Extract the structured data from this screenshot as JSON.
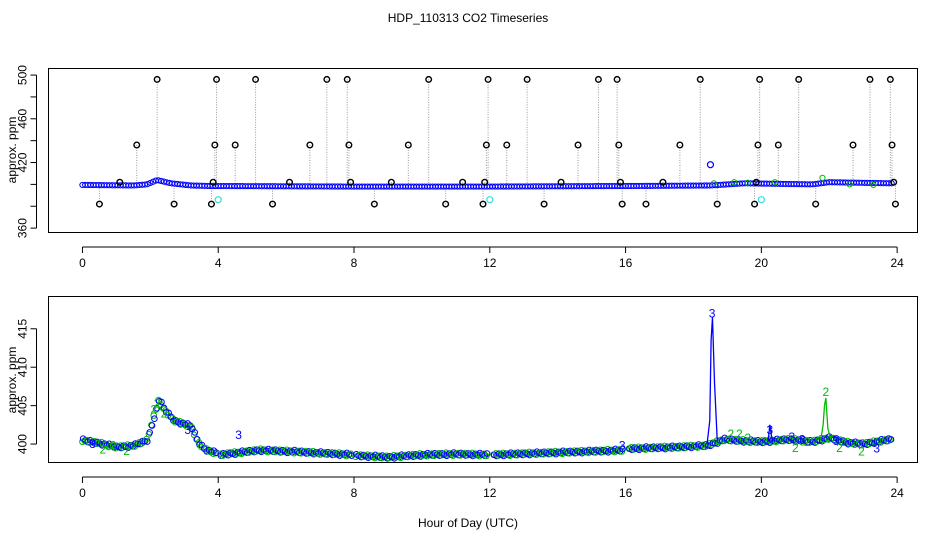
{
  "figure": {
    "title": "HDP_110313  CO2 Timeseries",
    "xlabel": "Hour of Day (UTC)"
  },
  "colors": {
    "calibration": "#000000",
    "blue_series": "#0000ff",
    "green_series": "#00bb00",
    "cyan_series": "#33dddd",
    "drop_lines": "#999999"
  },
  "chart_data": [
    {
      "type": "scatter",
      "panel": "top",
      "title": "",
      "xlabel": "",
      "ylabel": "approx. ppm",
      "xlim": [
        -1,
        24.6
      ],
      "ylim": [
        356,
        506
      ],
      "xticks": [
        0,
        4,
        8,
        12,
        16,
        20,
        24
      ],
      "yticks": [
        360,
        380,
        400,
        420,
        440,
        460,
        480,
        500
      ],
      "ytick_labels": [
        360,
        420,
        460,
        500
      ],
      "grid": false,
      "baseline_profile": [
        [
          0,
          399.5
        ],
        [
          1.5,
          399
        ],
        [
          1.9,
          400
        ],
        [
          2.2,
          404
        ],
        [
          2.6,
          401
        ],
        [
          3.2,
          399
        ],
        [
          3.8,
          398.5
        ],
        [
          8,
          398
        ],
        [
          12,
          398
        ],
        [
          16,
          398.5
        ],
        [
          18.5,
          399
        ],
        [
          19.5,
          401
        ],
        [
          21.5,
          400
        ],
        [
          22,
          402
        ],
        [
          23.8,
          401
        ]
      ],
      "series": [
        {
          "marker": "circle-open",
          "drop_lines": true,
          "x": [
            0.5,
            1.1,
            1.6,
            2.2,
            2.7,
            3.8,
            3.85,
            3.9,
            3.95,
            4.5,
            5.1,
            5.6,
            6.1,
            6.7,
            7.2,
            7.8,
            7.85,
            7.9,
            8.6,
            9.1,
            9.6,
            10.2,
            10.7,
            11.2,
            11.8,
            11.85,
            11.9,
            11.95,
            12.5,
            13.1,
            13.6,
            14.1,
            14.6,
            15.2,
            15.75,
            15.8,
            15.85,
            15.9,
            16.6,
            17.1,
            17.6,
            18.2,
            18.7,
            19.8,
            19.85,
            19.9,
            19.95,
            20.5,
            21.1,
            21.6,
            22.7,
            23.2,
            23.8,
            23.85,
            23.9,
            23.95
          ],
          "y": [
            382,
            402,
            436,
            496,
            382,
            382,
            402,
            436,
            496,
            436,
            496,
            382,
            402,
            436,
            496,
            496,
            436,
            402,
            382,
            402,
            436,
            496,
            382,
            402,
            382,
            402,
            436,
            496,
            436,
            496,
            382,
            402,
            436,
            496,
            496,
            436,
            402,
            382,
            382,
            402,
            436,
            496,
            382,
            382,
            402,
            436,
            496,
            436,
            496,
            382,
            436,
            496,
            496,
            436,
            402,
            382
          ]
        },
        {
          "marker": "circle-open",
          "x": [
            18.5
          ],
          "y": [
            418
          ]
        },
        {
          "marker": "circle-open",
          "x": [
            4.0,
            12.0,
            20.0
          ],
          "y": [
            386,
            386,
            386
          ]
        }
      ]
    },
    {
      "type": "scatter",
      "panel": "bottom",
      "title": "",
      "xlabel": "",
      "ylabel": "approx. ppm",
      "xlim": [
        -1,
        24.6
      ],
      "ylim": [
        397.6,
        419.2
      ],
      "xticks": [
        0,
        4,
        8,
        12,
        16,
        20,
        24
      ],
      "yticks": [
        400,
        405,
        410,
        415
      ],
      "grid": false,
      "gaps": [
        [
          3.95,
          4.05
        ],
        [
          7.95,
          8.05
        ],
        [
          11.95,
          12.05
        ],
        [
          15.95,
          16.05
        ]
      ],
      "series": [
        {
          "marker": "circle-open",
          "profile": [
            [
              0,
              400.5
            ],
            [
              0.5,
              400.1
            ],
            [
              1,
              399.6
            ],
            [
              1.5,
              399.8
            ],
            [
              1.9,
              400.5
            ],
            [
              2.1,
              403.5
            ],
            [
              2.25,
              405.8
            ],
            [
              2.4,
              404.5
            ],
            [
              2.7,
              403
            ],
            [
              3.0,
              402.6
            ],
            [
              3.2,
              402.3
            ],
            [
              3.4,
              400.2
            ],
            [
              3.6,
              399.3
            ],
            [
              3.95,
              398.8
            ],
            [
              4.05,
              398.6
            ],
            [
              5.2,
              399.2
            ],
            [
              6.3,
              399
            ],
            [
              7.95,
              398.6
            ],
            [
              8.05,
              398.5
            ],
            [
              9,
              398.3
            ],
            [
              10,
              398.6
            ],
            [
              11,
              398.7
            ],
            [
              11.95,
              398.6
            ],
            [
              12.05,
              398.6
            ],
            [
              14,
              398.9
            ],
            [
              15.95,
              399.2
            ],
            [
              16.05,
              399.4
            ],
            [
              17.5,
              399.6
            ],
            [
              18.4,
              399.8
            ],
            [
              18.9,
              400.6
            ],
            [
              19.5,
              400.4
            ],
            [
              20,
              400.3
            ],
            [
              20.8,
              400.6
            ],
            [
              21.5,
              400.3
            ],
            [
              22,
              400.8
            ],
            [
              22.5,
              400.2
            ],
            [
              23,
              400
            ],
            [
              23.5,
              400.4
            ],
            [
              23.8,
              400.6
            ]
          ],
          "markers": [
            {
              "x": 0.3,
              "y": 400.0,
              "label": "3"
            },
            {
              "x": 3.1,
              "y": 401.8,
              "label": "3"
            },
            {
              "x": 4.6,
              "y": 401.2,
              "label": "3"
            },
            {
              "x": 15.9,
              "y": 399.8,
              "label": "3"
            },
            {
              "x": 18.55,
              "y": 417.0,
              "label": "3"
            },
            {
              "x": 20.25,
              "y": 401.8,
              "label": "3"
            },
            {
              "x": 20.9,
              "y": 400.9,
              "label": "3"
            },
            {
              "x": 21.2,
              "y": 400.6,
              "label": "3"
            },
            {
              "x": 22.2,
              "y": 400.4,
              "label": "3"
            },
            {
              "x": 23.4,
              "y": 399.4,
              "label": "3"
            }
          ],
          "spikes": [
            {
              "x": [
                18.4,
                18.48,
                18.52,
                18.56,
                18.62,
                18.7
              ],
              "y": [
                400,
                403,
                413.5,
                416.5,
                408,
                400.5
              ]
            },
            {
              "x": [
                20.2,
                20.25,
                20.3,
                20.35
              ],
              "y": [
                400.3,
                402.5,
                401,
                400.4
              ]
            }
          ]
        },
        {
          "marker": "circle-open",
          "markers": [
            {
              "x": 0.6,
              "y": 399.3,
              "label": "2"
            },
            {
              "x": 0.9,
              "y": 399.8,
              "label": "2"
            },
            {
              "x": 1.3,
              "y": 399.1,
              "label": "2"
            },
            {
              "x": 2.1,
              "y": 404.5,
              "label": "2"
            },
            {
              "x": 2.2,
              "y": 405.3,
              "label": "2"
            },
            {
              "x": 2.4,
              "y": 404.0,
              "label": "2"
            },
            {
              "x": 19.1,
              "y": 401.3,
              "label": "2"
            },
            {
              "x": 19.35,
              "y": 401.3,
              "label": "2"
            },
            {
              "x": 19.6,
              "y": 400.8,
              "label": "2"
            },
            {
              "x": 21.0,
              "y": 399.5,
              "label": "2"
            },
            {
              "x": 21.35,
              "y": 400.3,
              "label": "2"
            },
            {
              "x": 21.9,
              "y": 406.8,
              "label": "2"
            },
            {
              "x": 22.3,
              "y": 399.5,
              "label": "2"
            },
            {
              "x": 22.95,
              "y": 399.0,
              "label": "2"
            }
          ],
          "spikes": [
            {
              "x": [
                21.75,
                21.82,
                21.86,
                21.9,
                21.96,
                22.05
              ],
              "y": [
                400.6,
                402.5,
                405,
                406,
                402,
                400.6
              ]
            }
          ]
        }
      ]
    }
  ]
}
